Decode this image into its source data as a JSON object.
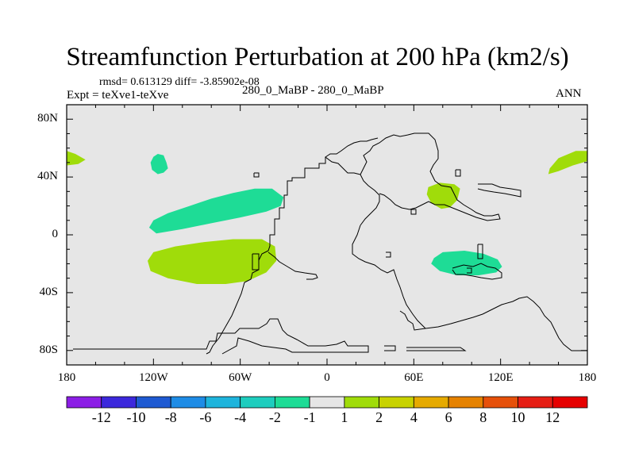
{
  "chart_data": {
    "type": "heatmap",
    "title": "Streamfunction Perturbation at 200 hPa (km2/s)",
    "stats_line": "rmsd= 0.613129 diff= -3.85902e-08",
    "left_subtitle": "Expt = teXve1-teXve",
    "center_subtitle": "280_0_MaBP - 280_0_MaBP",
    "right_subtitle": "ANN",
    "xlim": [
      -180,
      180
    ],
    "ylim": [
      -90,
      90
    ],
    "x_ticks": [
      {
        "value": -180,
        "label": "180"
      },
      {
        "value": -120,
        "label": "120W"
      },
      {
        "value": -60,
        "label": "60W"
      },
      {
        "value": 0,
        "label": "0"
      },
      {
        "value": 60,
        "label": "60E"
      },
      {
        "value": 120,
        "label": "120E"
      },
      {
        "value": 180,
        "label": "180"
      }
    ],
    "y_ticks": [
      {
        "value": 80,
        "label": "80N"
      },
      {
        "value": 40,
        "label": "40N"
      },
      {
        "value": 0,
        "label": "0"
      },
      {
        "value": -40,
        "label": "40S"
      },
      {
        "value": -80,
        "label": "80S"
      }
    ],
    "colorbar": {
      "labels": [
        "-12",
        "-10",
        "-8",
        "-6",
        "-4",
        "-2",
        "-1",
        "1",
        "2",
        "4",
        "6",
        "8",
        "10",
        "12"
      ],
      "colors": [
        "#8c1ee6",
        "#3c28dc",
        "#1e5ad2",
        "#1e8ce6",
        "#1eb4dc",
        "#1ecdbe",
        "#1edc96",
        "#e6e6e6",
        "#a0dc0a",
        "#c8d200",
        "#e6aa00",
        "#e68200",
        "#e6500a",
        "#e61e14",
        "#e60000"
      ]
    },
    "background_color": "#e6e6e6",
    "regions": [
      {
        "name": "N Pacific eddy",
        "level": "-2 to -1",
        "color": "#1edc96",
        "points": [
          [
            -111,
            50
          ],
          [
            -113,
            55
          ],
          [
            -117,
            56
          ],
          [
            -120,
            54
          ],
          [
            -122,
            50
          ],
          [
            -121,
            45
          ],
          [
            -117,
            42
          ],
          [
            -113,
            43
          ],
          [
            -110,
            46
          ]
        ]
      },
      {
        "name": "Tropical E Pacific band N",
        "level": "-2 to -1",
        "color": "#1edc96",
        "points": [
          [
            -123,
            5
          ],
          [
            -120,
            10
          ],
          [
            -110,
            15
          ],
          [
            -95,
            20
          ],
          [
            -80,
            25
          ],
          [
            -65,
            29
          ],
          [
            -50,
            32
          ],
          [
            -38,
            32
          ],
          [
            -30,
            26
          ],
          [
            -32,
            20
          ],
          [
            -42,
            16
          ],
          [
            -60,
            12
          ],
          [
            -80,
            8
          ],
          [
            -100,
            4
          ],
          [
            -118,
            1
          ]
        ]
      },
      {
        "name": "Tropical E Pacific band S",
        "level": "1 to 2",
        "color": "#a0dc0a",
        "points": [
          [
            -124,
            -18
          ],
          [
            -120,
            -12
          ],
          [
            -105,
            -8
          ],
          [
            -85,
            -5
          ],
          [
            -65,
            -3
          ],
          [
            -45,
            -3
          ],
          [
            -36,
            -8
          ],
          [
            -35,
            -18
          ],
          [
            -42,
            -26
          ],
          [
            -55,
            -32
          ],
          [
            -70,
            -34
          ],
          [
            -90,
            -34
          ],
          [
            -110,
            -30
          ],
          [
            -122,
            -25
          ]
        ]
      },
      {
        "name": "W Pacific dateline west",
        "level": "1 to 2",
        "color": "#a0dc0a",
        "points": [
          [
            -180,
            58
          ],
          [
            -174,
            56
          ],
          [
            -167,
            52
          ],
          [
            -172,
            49
          ],
          [
            -180,
            48
          ]
        ]
      },
      {
        "name": "W Pacific dateline east",
        "level": "1 to 2",
        "color": "#a0dc0a",
        "points": [
          [
            180,
            58
          ],
          [
            172,
            58
          ],
          [
            160,
            53
          ],
          [
            154,
            46
          ],
          [
            153,
            42
          ],
          [
            160,
            44
          ],
          [
            170,
            48
          ],
          [
            180,
            51
          ]
        ]
      },
      {
        "name": "Tibetan high",
        "level": "1 to 2",
        "color": "#a0dc0a",
        "points": [
          [
            70,
            33
          ],
          [
            78,
            36
          ],
          [
            88,
            35
          ],
          [
            92,
            32
          ],
          [
            90,
            24
          ],
          [
            85,
            19
          ],
          [
            79,
            18
          ],
          [
            72,
            22
          ],
          [
            69,
            28
          ]
        ]
      },
      {
        "name": "S Indian Ocean eddy",
        "level": "-2 to -1",
        "color": "#1edc96",
        "points": [
          [
            74,
            -16
          ],
          [
            80,
            -12
          ],
          [
            95,
            -11
          ],
          [
            108,
            -13
          ],
          [
            118,
            -17
          ],
          [
            121,
            -22
          ],
          [
            117,
            -26
          ],
          [
            105,
            -28
          ],
          [
            90,
            -28
          ],
          [
            78,
            -25
          ],
          [
            72,
            -20
          ]
        ]
      }
    ]
  }
}
